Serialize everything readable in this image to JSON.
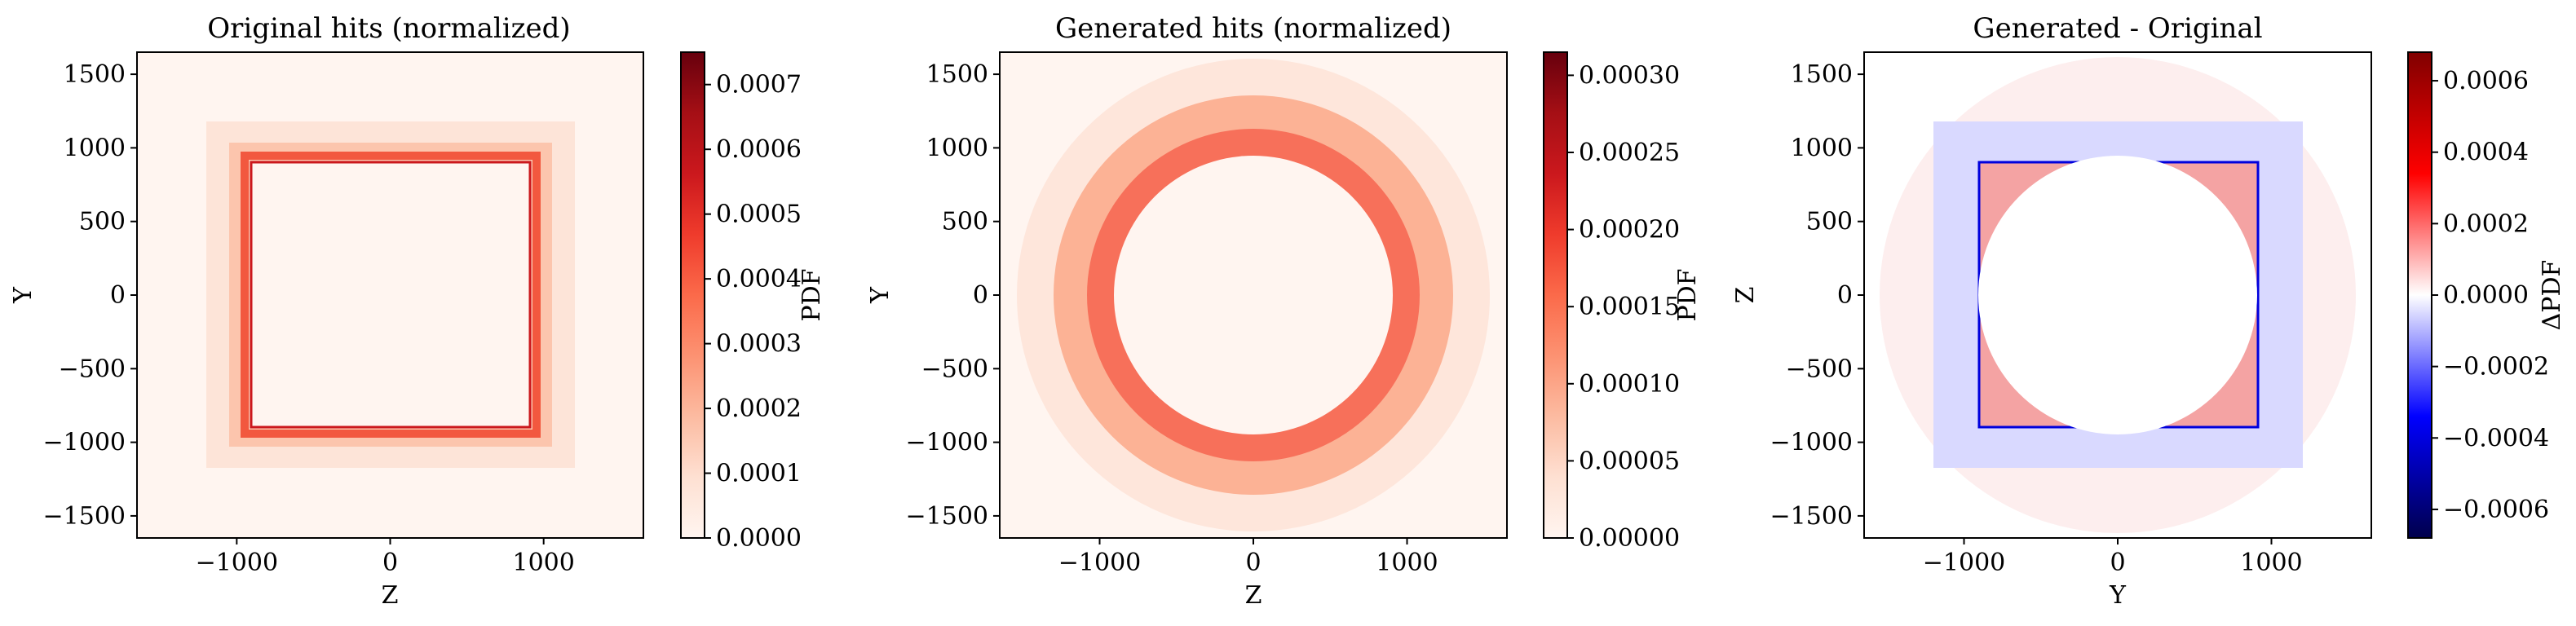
{
  "chart_data": [
    {
      "type": "heatmap",
      "title": "Original hits (normalized)",
      "xlabel": "Z",
      "ylabel": "Y",
      "colorbar_label": "PDF",
      "colormap": "Reds",
      "colors": {
        "low": "#fff5f0",
        "mid": "#fb6a4a",
        "high": "#67000d"
      },
      "xlim": [
        -1650,
        1650
      ],
      "ylim": [
        -1650,
        1650
      ],
      "xticks": [
        -1000,
        0,
        1000
      ],
      "xtick_labels": [
        "−1000",
        "0",
        "1000"
      ],
      "yticks": [
        1500,
        1000,
        500,
        0,
        -500,
        -1000,
        -1500
      ],
      "ytick_labels": [
        "1500",
        "1000",
        "500",
        "0",
        "−500",
        "−1000",
        "−1500"
      ],
      "clim": [
        0,
        0.00075
      ],
      "cbar_ticks": [
        0,
        0.0001,
        0.0002,
        0.0003,
        0.0004,
        0.0005,
        0.0006,
        0.0007
      ],
      "cbar_tick_labels": [
        "0.0000",
        "0.0001",
        "0.0002",
        "0.0003",
        "0.0004",
        "0.0005",
        "0.0006",
        "0.0007"
      ],
      "shape": "square-annulus",
      "inner_half_width": 900,
      "outer_half_width": 1200,
      "typical_density": 0.00018,
      "edge_density": 0.0007
    },
    {
      "type": "heatmap",
      "title": "Generated hits (normalized)",
      "xlabel": "Z",
      "ylabel": "Y",
      "colorbar_label": "PDF",
      "colormap": "Reds",
      "colors": {
        "low": "#fff5f0",
        "mid": "#fb6a4a",
        "high": "#67000d"
      },
      "xlim": [
        -1650,
        1650
      ],
      "ylim": [
        -1650,
        1650
      ],
      "xticks": [
        -1000,
        0,
        1000
      ],
      "xtick_labels": [
        "−1000",
        "0",
        "1000"
      ],
      "yticks": [
        1500,
        1000,
        500,
        0,
        -500,
        -1000,
        -1500
      ],
      "ytick_labels": [
        "1500",
        "1000",
        "500",
        "0",
        "−500",
        "−1000",
        "−1500"
      ],
      "clim": [
        0,
        0.000315
      ],
      "cbar_ticks": [
        0,
        5e-05,
        0.0001,
        0.00015,
        0.0002,
        0.00025,
        0.0003
      ],
      "cbar_tick_labels": [
        "0.00000",
        "0.00005",
        "0.00010",
        "0.00015",
        "0.00020",
        "0.00025",
        "0.00030"
      ],
      "shape": "circular-annulus",
      "inner_radius": 900,
      "outer_radius": 1500,
      "peak_radius": 1050,
      "peak_density": 0.00018
    },
    {
      "type": "heatmap",
      "title": "Generated - Original",
      "xlabel": "Y",
      "ylabel": "Z",
      "colorbar_label": "ΔPDF",
      "colormap": "seismic",
      "colors": {
        "low": "#00004c",
        "neg": "#0000ff",
        "zero": "#ffffff",
        "pos": "#ff0000",
        "high": "#800000"
      },
      "xlim": [
        -1650,
        1650
      ],
      "ylim": [
        -1650,
        1650
      ],
      "xticks": [
        -1000,
        0,
        1000
      ],
      "xtick_labels": [
        "−1000",
        "0",
        "1000"
      ],
      "yticks": [
        1500,
        1000,
        500,
        0,
        -500,
        -1000,
        -1500
      ],
      "ytick_labels": [
        "1500",
        "1000",
        "500",
        "0",
        "−500",
        "−1000",
        "−1500"
      ],
      "clim": [
        -0.00068,
        0.00068
      ],
      "cbar_ticks": [
        0.0006,
        0.0004,
        0.0002,
        0,
        -0.0002,
        -0.0004,
        -0.0006
      ],
      "cbar_tick_labels": [
        "0.0006",
        "0.0004",
        "0.0002",
        "0.0000",
        "−0.0002",
        "−0.0004",
        "−0.0006"
      ],
      "shape": "difference",
      "inner_square_half_width": 900,
      "outer_square_half_width": 1200,
      "circle_radius": 900
    }
  ]
}
